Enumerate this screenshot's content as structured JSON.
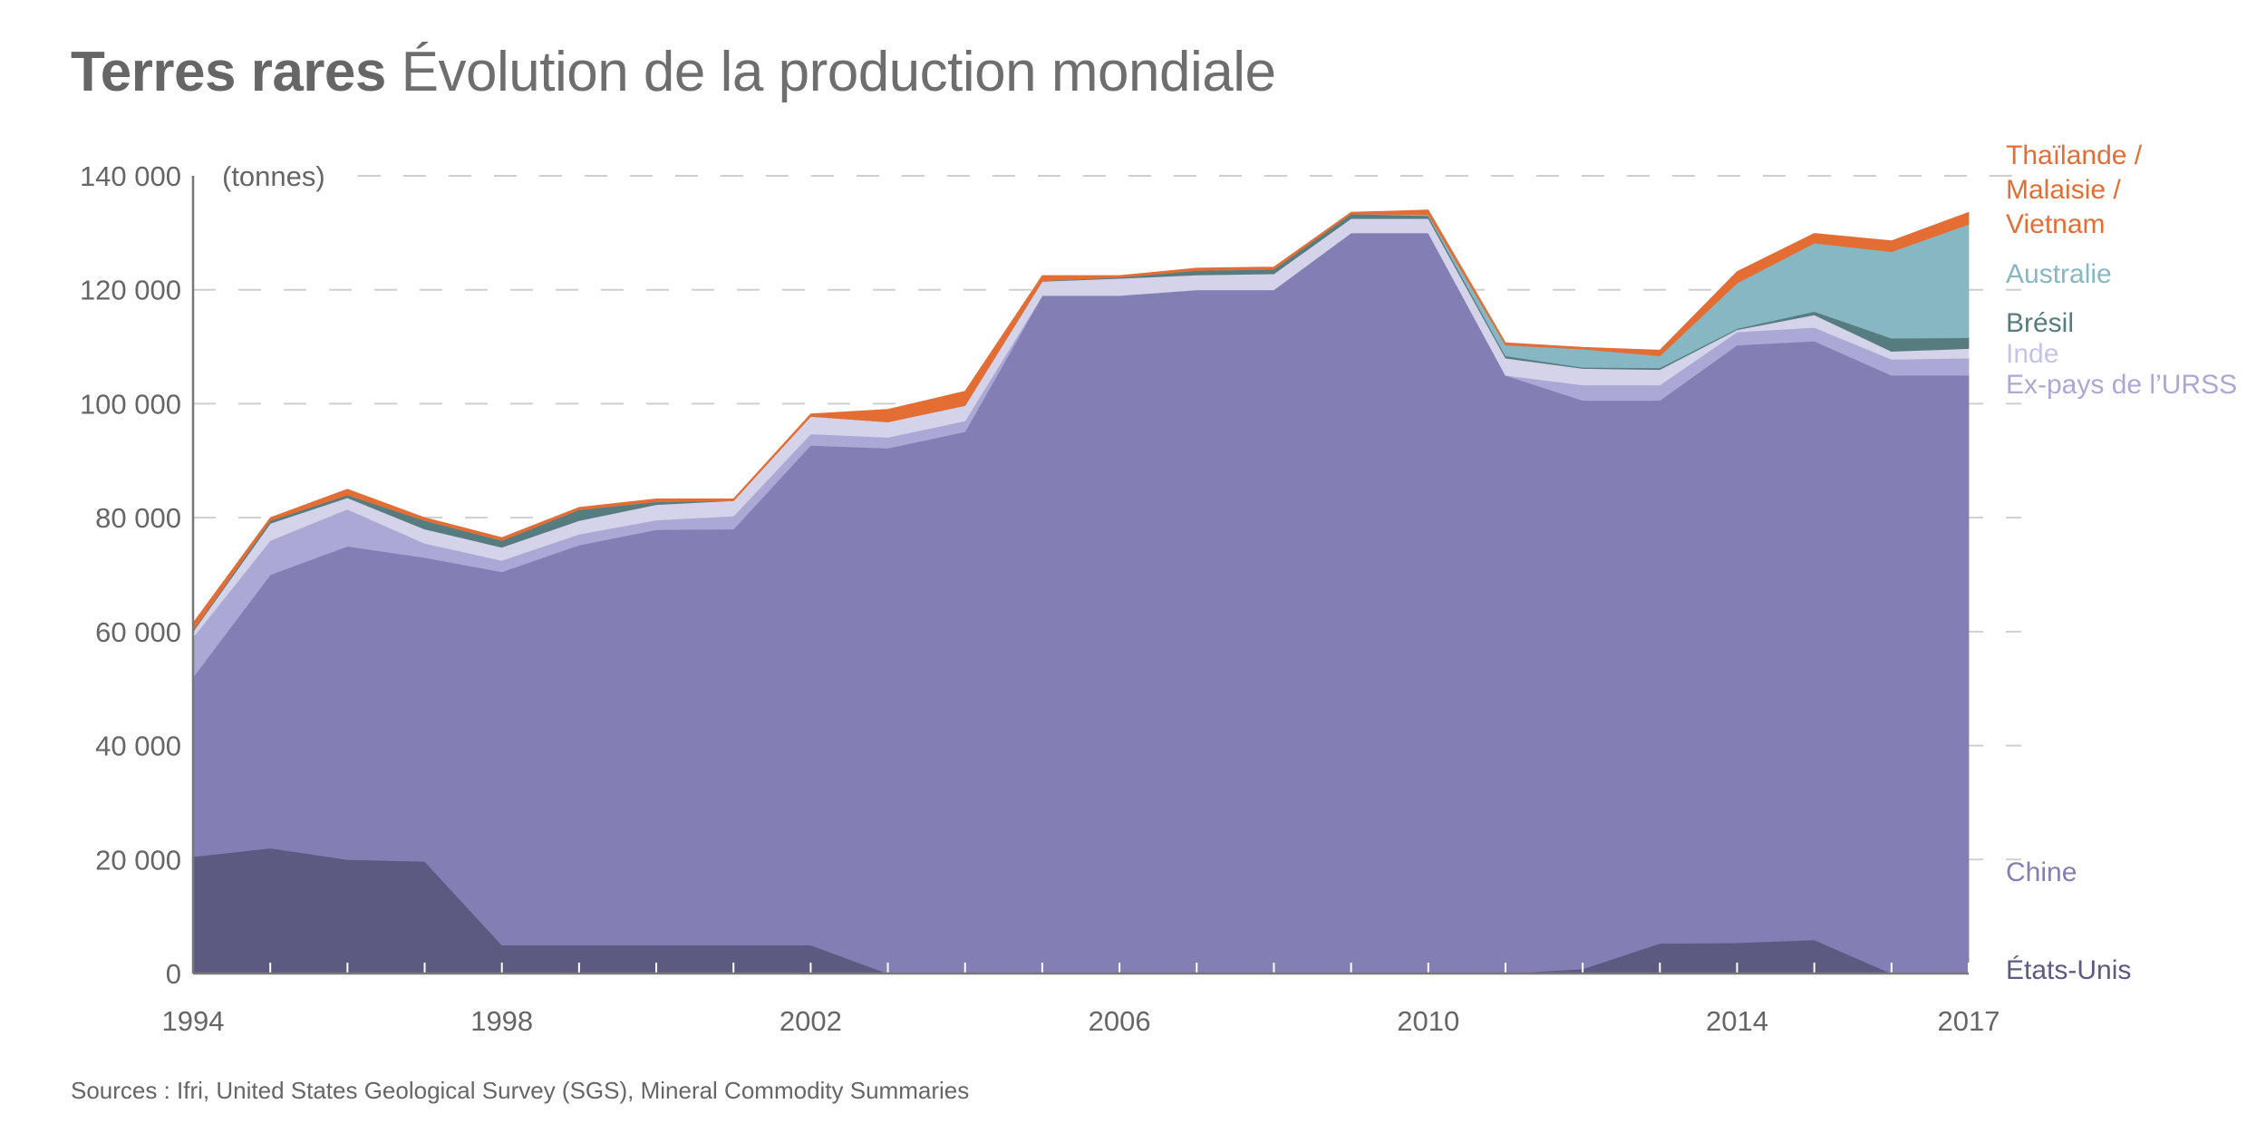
{
  "title": {
    "bold": "Terres rares",
    "light": "Évolution de la production mondiale"
  },
  "source": "Sources : Ifri, United States Geological Survey (SGS), Mineral Commodity Summaries",
  "chart_data": {
    "type": "area",
    "stacked": true,
    "title": "Terres rares Évolution de la production mondiale",
    "ylabel": "(tonnes)",
    "xlabel": "",
    "ylim": [
      0,
      140000
    ],
    "xlim": [
      1994,
      2017
    ],
    "grid": true,
    "y_ticks": [
      {
        "value": 0,
        "label": "0"
      },
      {
        "value": 20000,
        "label": "20 000"
      },
      {
        "value": 40000,
        "label": "40 000"
      },
      {
        "value": 60000,
        "label": "60 000"
      },
      {
        "value": 80000,
        "label": "80 000"
      },
      {
        "value": 100000,
        "label": "100 000"
      },
      {
        "value": 120000,
        "label": "120 000"
      },
      {
        "value": 140000,
        "label": "140 000"
      }
    ],
    "x_ticks": [
      {
        "value": 1994,
        "label": "1994"
      },
      {
        "value": 1998,
        "label": "1998"
      },
      {
        "value": 2002,
        "label": "2002"
      },
      {
        "value": 2006,
        "label": "2006"
      },
      {
        "value": 2010,
        "label": "2010"
      },
      {
        "value": 2014,
        "label": "2014"
      },
      {
        "value": 2017,
        "label": "2017"
      }
    ],
    "x": [
      1994,
      1995,
      1996,
      1997,
      1998,
      1999,
      2000,
      2001,
      2002,
      2003,
      2004,
      2005,
      2006,
      2007,
      2008,
      2009,
      2010,
      2011,
      2012,
      2013,
      2014,
      2015,
      2016,
      2017
    ],
    "legend_position": "right",
    "series": [
      {
        "name": "États-Unis",
        "color": "#5c5a80",
        "values": [
          20500,
          22000,
          20000,
          19700,
          5000,
          5000,
          5000,
          5000,
          5000,
          0,
          0,
          0,
          0,
          0,
          0,
          0,
          0,
          0,
          800,
          5300,
          5400,
          5900,
          0,
          0
        ]
      },
      {
        "name": "Chine",
        "color": "#837fb5",
        "values": [
          31500,
          48000,
          55000,
          53300,
          65500,
          70200,
          72900,
          73000,
          87700,
          92200,
          95100,
          119000,
          119000,
          120000,
          120000,
          130000,
          130000,
          105000,
          99800,
          95300,
          104900,
          105100,
          105000,
          105000
        ]
      },
      {
        "name": "Ex-pays de l'URSS",
        "color": "#aba8d6",
        "values": [
          7000,
          6000,
          6500,
          2500,
          2000,
          1900,
          1700,
          2300,
          2000,
          1900,
          1900,
          0,
          0,
          0,
          0,
          0,
          0,
          0,
          2700,
          2700,
          2300,
          2400,
          2800,
          3000
        ]
      },
      {
        "name": "Inde",
        "color": "#d4d3ea",
        "values": [
          1000,
          3000,
          2000,
          2500,
          2300,
          2400,
          2700,
          2700,
          3100,
          2700,
          2700,
          2500,
          3000,
          2600,
          2800,
          2500,
          2500,
          3000,
          2900,
          2700,
          400,
          2200,
          1400,
          1700
        ]
      },
      {
        "name": "Brésil",
        "color": "#577c80",
        "values": [
          200,
          500,
          500,
          1500,
          1200,
          1900,
          500,
          0,
          0,
          0,
          0,
          100,
          200,
          800,
          800,
          800,
          500,
          400,
          200,
          300,
          200,
          600,
          2300,
          1900
        ]
      },
      {
        "name": "Australie",
        "color": "#86b7c2",
        "values": [
          0,
          0,
          0,
          0,
          0,
          0,
          0,
          0,
          0,
          0,
          0,
          0,
          0,
          0,
          0,
          0,
          200,
          1900,
          3200,
          2100,
          8000,
          12000,
          15200,
          19900
        ]
      },
      {
        "name": "Thaïlande / Malaisie / Vietnam",
        "color": "#e46d34",
        "values": [
          1300,
          500,
          1000,
          500,
          500,
          400,
          500,
          300,
          400,
          2200,
          2500,
          900,
          300,
          400,
          400,
          300,
          800,
          400,
          300,
          1000,
          2000,
          1700,
          1900,
          2100
        ]
      }
    ],
    "legend": [
      {
        "lines": [
          "Thaïlande /",
          "Malaisie /",
          "Vietnam"
        ],
        "color": "#e46d34"
      },
      {
        "lines": [
          "Australie"
        ],
        "color": "#86b7c2"
      },
      {
        "lines": [
          "Brésil"
        ],
        "color": "#577c80"
      },
      {
        "lines": [
          "Inde"
        ],
        "color": "#c5c3ea"
      },
      {
        "lines": [
          "Ex-pays de l’URSS"
        ],
        "color": "#aba8d6"
      },
      {
        "lines": [
          "Chine"
        ],
        "color": "#837fb5"
      },
      {
        "lines": [
          "États-Unis"
        ],
        "color": "#5c5a80"
      }
    ]
  }
}
